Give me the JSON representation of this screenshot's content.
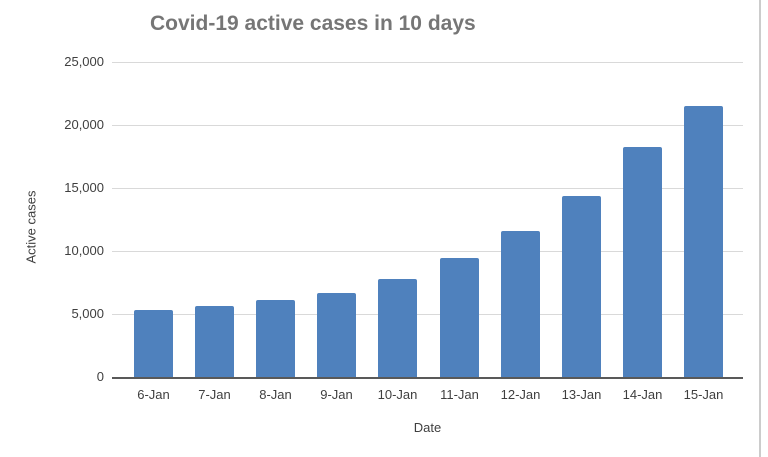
{
  "chart_data": {
    "type": "bar",
    "title": "Covid-19 active cases in 10 days",
    "xlabel": "Date",
    "ylabel": "Active cases",
    "categories": [
      "6-Jan",
      "7-Jan",
      "8-Jan",
      "9-Jan",
      "10-Jan",
      "11-Jan",
      "12-Jan",
      "13-Jan",
      "14-Jan",
      "15-Jan"
    ],
    "values": [
      5350,
      5650,
      6100,
      6650,
      7800,
      9450,
      11600,
      14350,
      18250,
      21500
    ],
    "ylim": [
      0,
      25000
    ],
    "ytick_interval": 5000,
    "ytick_labels": [
      "0",
      "5,000",
      "10,000",
      "15,000",
      "20,000",
      "25,000"
    ],
    "grid": true,
    "legend": "none",
    "colors": {
      "bar": "#4f81bd",
      "gridline": "#d9d9d9",
      "axis_line": "#595959",
      "title_text": "#767676",
      "label_text": "#3f3f3f",
      "chart_border": "#cccccc"
    }
  }
}
